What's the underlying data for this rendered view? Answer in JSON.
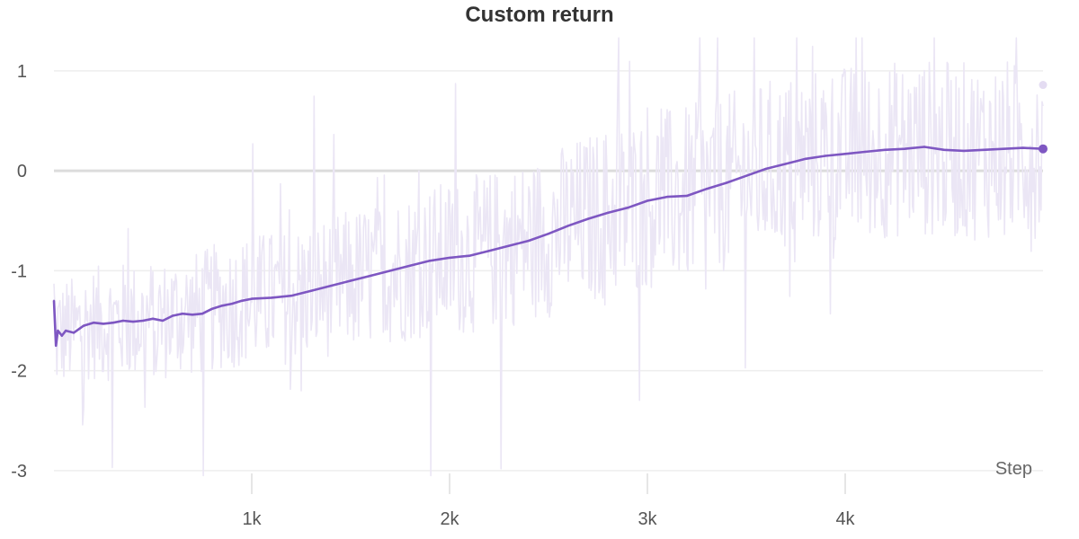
{
  "chart_data": {
    "type": "line",
    "title": "Custom return",
    "xlabel": "Step",
    "ylabel": "",
    "xlim": [
      0,
      5000
    ],
    "ylim": [
      -3.1,
      1.35
    ],
    "x_ticks": [
      1000,
      2000,
      3000,
      4000
    ],
    "x_tick_labels": [
      "1k",
      "2k",
      "3k",
      "4k"
    ],
    "y_ticks": [
      1,
      0,
      -1,
      -2,
      -3
    ],
    "y_tick_labels": [
      "1",
      "0",
      "-1",
      "-2",
      "-3"
    ],
    "grid": true,
    "zero_line": true,
    "raw_series": {
      "color": "#ebe6f5",
      "last_point": {
        "x": 5000,
        "y": 0.86
      }
    },
    "series": [
      {
        "color": "#7e57c2",
        "x": [
          0,
          10,
          20,
          40,
          60,
          100,
          150,
          200,
          250,
          300,
          350,
          400,
          450,
          500,
          550,
          600,
          650,
          700,
          750,
          800,
          850,
          900,
          950,
          1000,
          1100,
          1200,
          1300,
          1400,
          1500,
          1600,
          1700,
          1800,
          1900,
          2000,
          2100,
          2200,
          2300,
          2400,
          2500,
          2600,
          2700,
          2800,
          2900,
          3000,
          3100,
          3200,
          3300,
          3400,
          3500,
          3600,
          3700,
          3800,
          3900,
          4000,
          4100,
          4200,
          4300,
          4400,
          4500,
          4600,
          4700,
          4800,
          4900,
          5000
        ],
        "y": [
          -1.3,
          -1.75,
          -1.6,
          -1.65,
          -1.6,
          -1.62,
          -1.55,
          -1.52,
          -1.53,
          -1.52,
          -1.5,
          -1.51,
          -1.5,
          -1.48,
          -1.5,
          -1.45,
          -1.43,
          -1.44,
          -1.43,
          -1.38,
          -1.35,
          -1.33,
          -1.3,
          -1.28,
          -1.27,
          -1.25,
          -1.2,
          -1.15,
          -1.1,
          -1.05,
          -1.0,
          -0.95,
          -0.9,
          -0.87,
          -0.85,
          -0.8,
          -0.75,
          -0.7,
          -0.63,
          -0.55,
          -0.48,
          -0.42,
          -0.37,
          -0.3,
          -0.26,
          -0.25,
          -0.18,
          -0.12,
          -0.05,
          0.02,
          0.07,
          0.12,
          0.15,
          0.17,
          0.19,
          0.21,
          0.22,
          0.24,
          0.21,
          0.2,
          0.21,
          0.22,
          0.23,
          0.22
        ]
      }
    ]
  }
}
